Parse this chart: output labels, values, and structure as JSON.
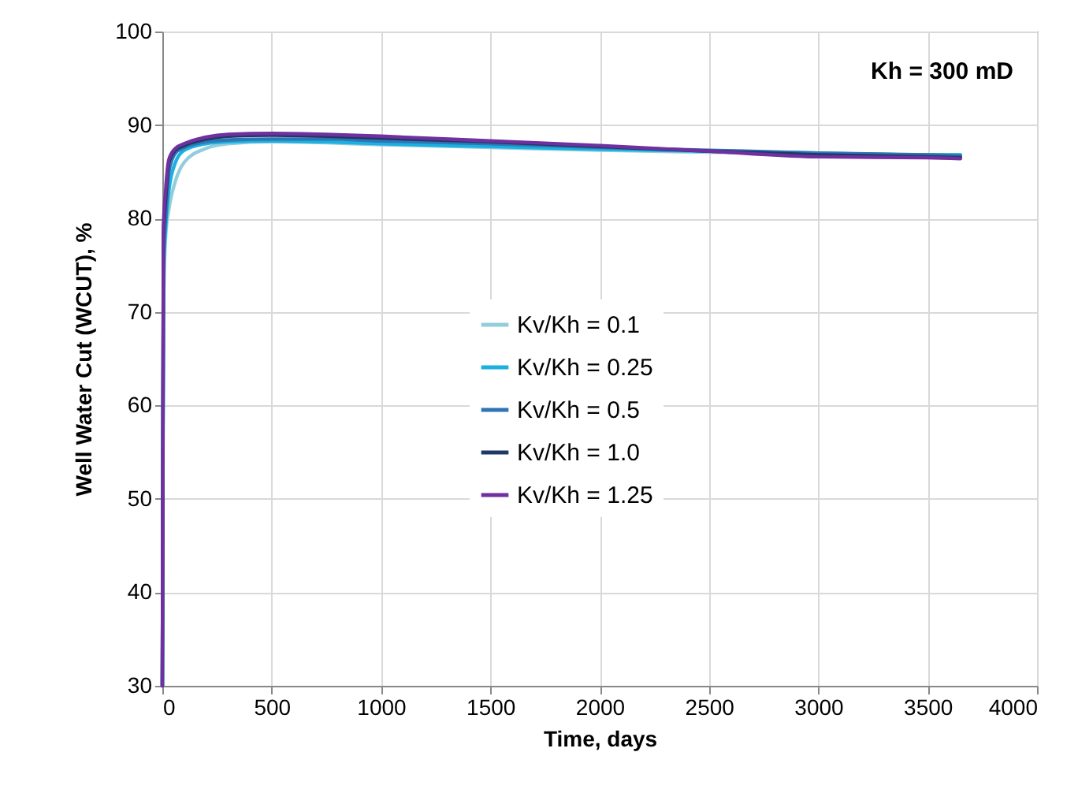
{
  "chart_data": {
    "type": "line",
    "xlabel": "Time, days",
    "ylabel": "Well Water Cut (WCUT), %",
    "annotations": [
      "Kh = 300 mD"
    ],
    "x": [
      0,
      5,
      15,
      30,
      60,
      100,
      200,
      300,
      500,
      750,
      1000,
      1500,
      2000,
      2500,
      3000,
      3500,
      3650
    ],
    "series": [
      {
        "name": "Kv/Kh = 0.1",
        "color": "#92cddc",
        "values": [
          30,
          70,
          78,
          81,
          84,
          86,
          87.5,
          88,
          88.2,
          88.1,
          87.9,
          87.6,
          87.3,
          87.1,
          86.9,
          86.8,
          86.8
        ]
      },
      {
        "name": "Kv/Kh = 0.25",
        "color": "#1ab0e0",
        "values": [
          30,
          74,
          79,
          83,
          86,
          87.3,
          88,
          88.2,
          88.3,
          88.2,
          88,
          87.7,
          87.4,
          87.2,
          87,
          86.8,
          86.8
        ]
      },
      {
        "name": "Kv/Kh = 0.5",
        "color": "#2e75b6",
        "values": [
          30,
          76,
          80,
          85,
          87,
          87.6,
          88.2,
          88.4,
          88.5,
          88.5,
          88.3,
          88,
          87.6,
          87.3,
          87,
          86.8,
          86.7
        ]
      },
      {
        "name": "Kv/Kh = 1.0",
        "color": "#1f3864",
        "values": [
          30,
          78,
          82,
          86,
          87.3,
          87.8,
          88.5,
          88.8,
          88.9,
          88.8,
          88.6,
          88.2,
          87.7,
          87.2,
          86.8,
          86.6,
          86.5
        ]
      },
      {
        "name": "Kv/Kh = 1.25",
        "color": "#7030a0",
        "values": [
          30,
          79,
          83,
          86.3,
          87.5,
          88,
          88.7,
          89,
          89.1,
          89,
          88.8,
          88.3,
          87.8,
          87.2,
          86.6,
          86.5,
          86.4
        ]
      }
    ],
    "xlim": [
      0,
      4000
    ],
    "xticks": [
      0,
      500,
      1000,
      1500,
      2000,
      2500,
      3000,
      3500,
      4000
    ],
    "ylim": [
      30,
      100
    ],
    "yticks": [
      30,
      40,
      50,
      60,
      70,
      80,
      90,
      100
    ],
    "grid": true,
    "legend": "center",
    "line_style": "solid",
    "marker": "none"
  }
}
